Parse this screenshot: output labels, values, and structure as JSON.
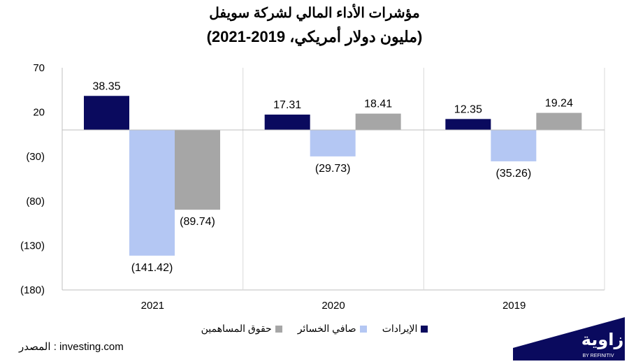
{
  "title": {
    "line1": "مؤشرات الأداء المالي لشركة سويفل",
    "line2": "(مليون دولار أمريكي، 2019-2021)"
  },
  "chart_data": {
    "type": "bar",
    "title": "مؤشرات الأداء المالي لشركة سويفل (مليون دولار أمريكي، 2019-2021)",
    "categories": [
      "2021",
      "2020",
      "2019"
    ],
    "series": [
      {
        "name": "الإيرادات",
        "color": "#0a0a5e",
        "values": [
          38.35,
          17.31,
          12.35
        ],
        "labels": [
          "38.35",
          "17.31",
          "12.35"
        ]
      },
      {
        "name": "صافي الخسائر",
        "color": "#b4c7f3",
        "values": [
          -141.42,
          -29.73,
          -35.26
        ],
        "labels": [
          "(141.42)",
          "(29.73)",
          "(35.26)"
        ]
      },
      {
        "name": "حقوق المساهمين",
        "color": "#a6a6a6",
        "values": [
          -89.74,
          18.41,
          19.24
        ],
        "labels": [
          "(89.74)",
          "18.41",
          "19.24"
        ]
      }
    ],
    "ylim": [
      -180,
      70
    ],
    "yticks": [
      70,
      20,
      -30,
      -80,
      -130,
      -180
    ],
    "ytick_labels": [
      "70",
      "20",
      "(30)",
      "(80)",
      "(130)",
      "(180)"
    ],
    "grid": "vertical separators",
    "legend": "bottom-center",
    "xlabel": "",
    "ylabel": ""
  },
  "source": "المصدر : investing.com",
  "logo": {
    "text": "زاوية",
    "tagline": "BY REFINITIV",
    "color": "#0a0a5e"
  }
}
